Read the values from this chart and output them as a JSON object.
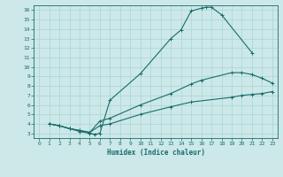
{
  "title": "",
  "xlabel": "Humidex (Indice chaleur)",
  "bg_color": "#cce8e8",
  "line_color": "#1a6b6b",
  "grid_color": "#aad4d4",
  "xlim": [
    -0.5,
    23.5
  ],
  "ylim": [
    2.5,
    16.5
  ],
  "xticks": [
    0,
    1,
    2,
    3,
    4,
    5,
    6,
    7,
    8,
    9,
    10,
    11,
    12,
    13,
    14,
    15,
    16,
    17,
    18,
    19,
    20,
    21,
    22,
    23
  ],
  "yticks": [
    3,
    4,
    5,
    6,
    7,
    8,
    9,
    10,
    11,
    12,
    13,
    14,
    15,
    16
  ],
  "curve1_x": [
    1,
    2,
    3,
    4,
    5,
    5.5,
    6,
    7,
    10,
    13,
    14,
    15,
    16,
    16.5,
    17,
    18,
    21
  ],
  "curve1_y": [
    4,
    3.8,
    3.5,
    3.2,
    3.0,
    2.9,
    3.0,
    6.5,
    9.3,
    13.0,
    13.9,
    15.9,
    16.2,
    16.3,
    16.3,
    15.5,
    11.5
  ],
  "curve2_x": [
    1,
    2,
    3,
    4,
    5,
    6,
    7,
    10,
    13,
    15,
    16,
    19,
    20,
    21,
    22,
    23
  ],
  "curve2_y": [
    4,
    3.8,
    3.5,
    3.3,
    3.1,
    4.3,
    4.6,
    6.0,
    7.2,
    8.2,
    8.6,
    9.4,
    9.4,
    9.2,
    8.8,
    8.3
  ],
  "curve3_x": [
    1,
    2,
    3,
    4,
    5,
    6,
    7,
    10,
    13,
    15,
    19,
    20,
    21,
    22,
    23
  ],
  "curve3_y": [
    4,
    3.8,
    3.5,
    3.3,
    3.1,
    3.8,
    4.0,
    5.0,
    5.8,
    6.3,
    6.8,
    7.0,
    7.1,
    7.2,
    7.4
  ]
}
